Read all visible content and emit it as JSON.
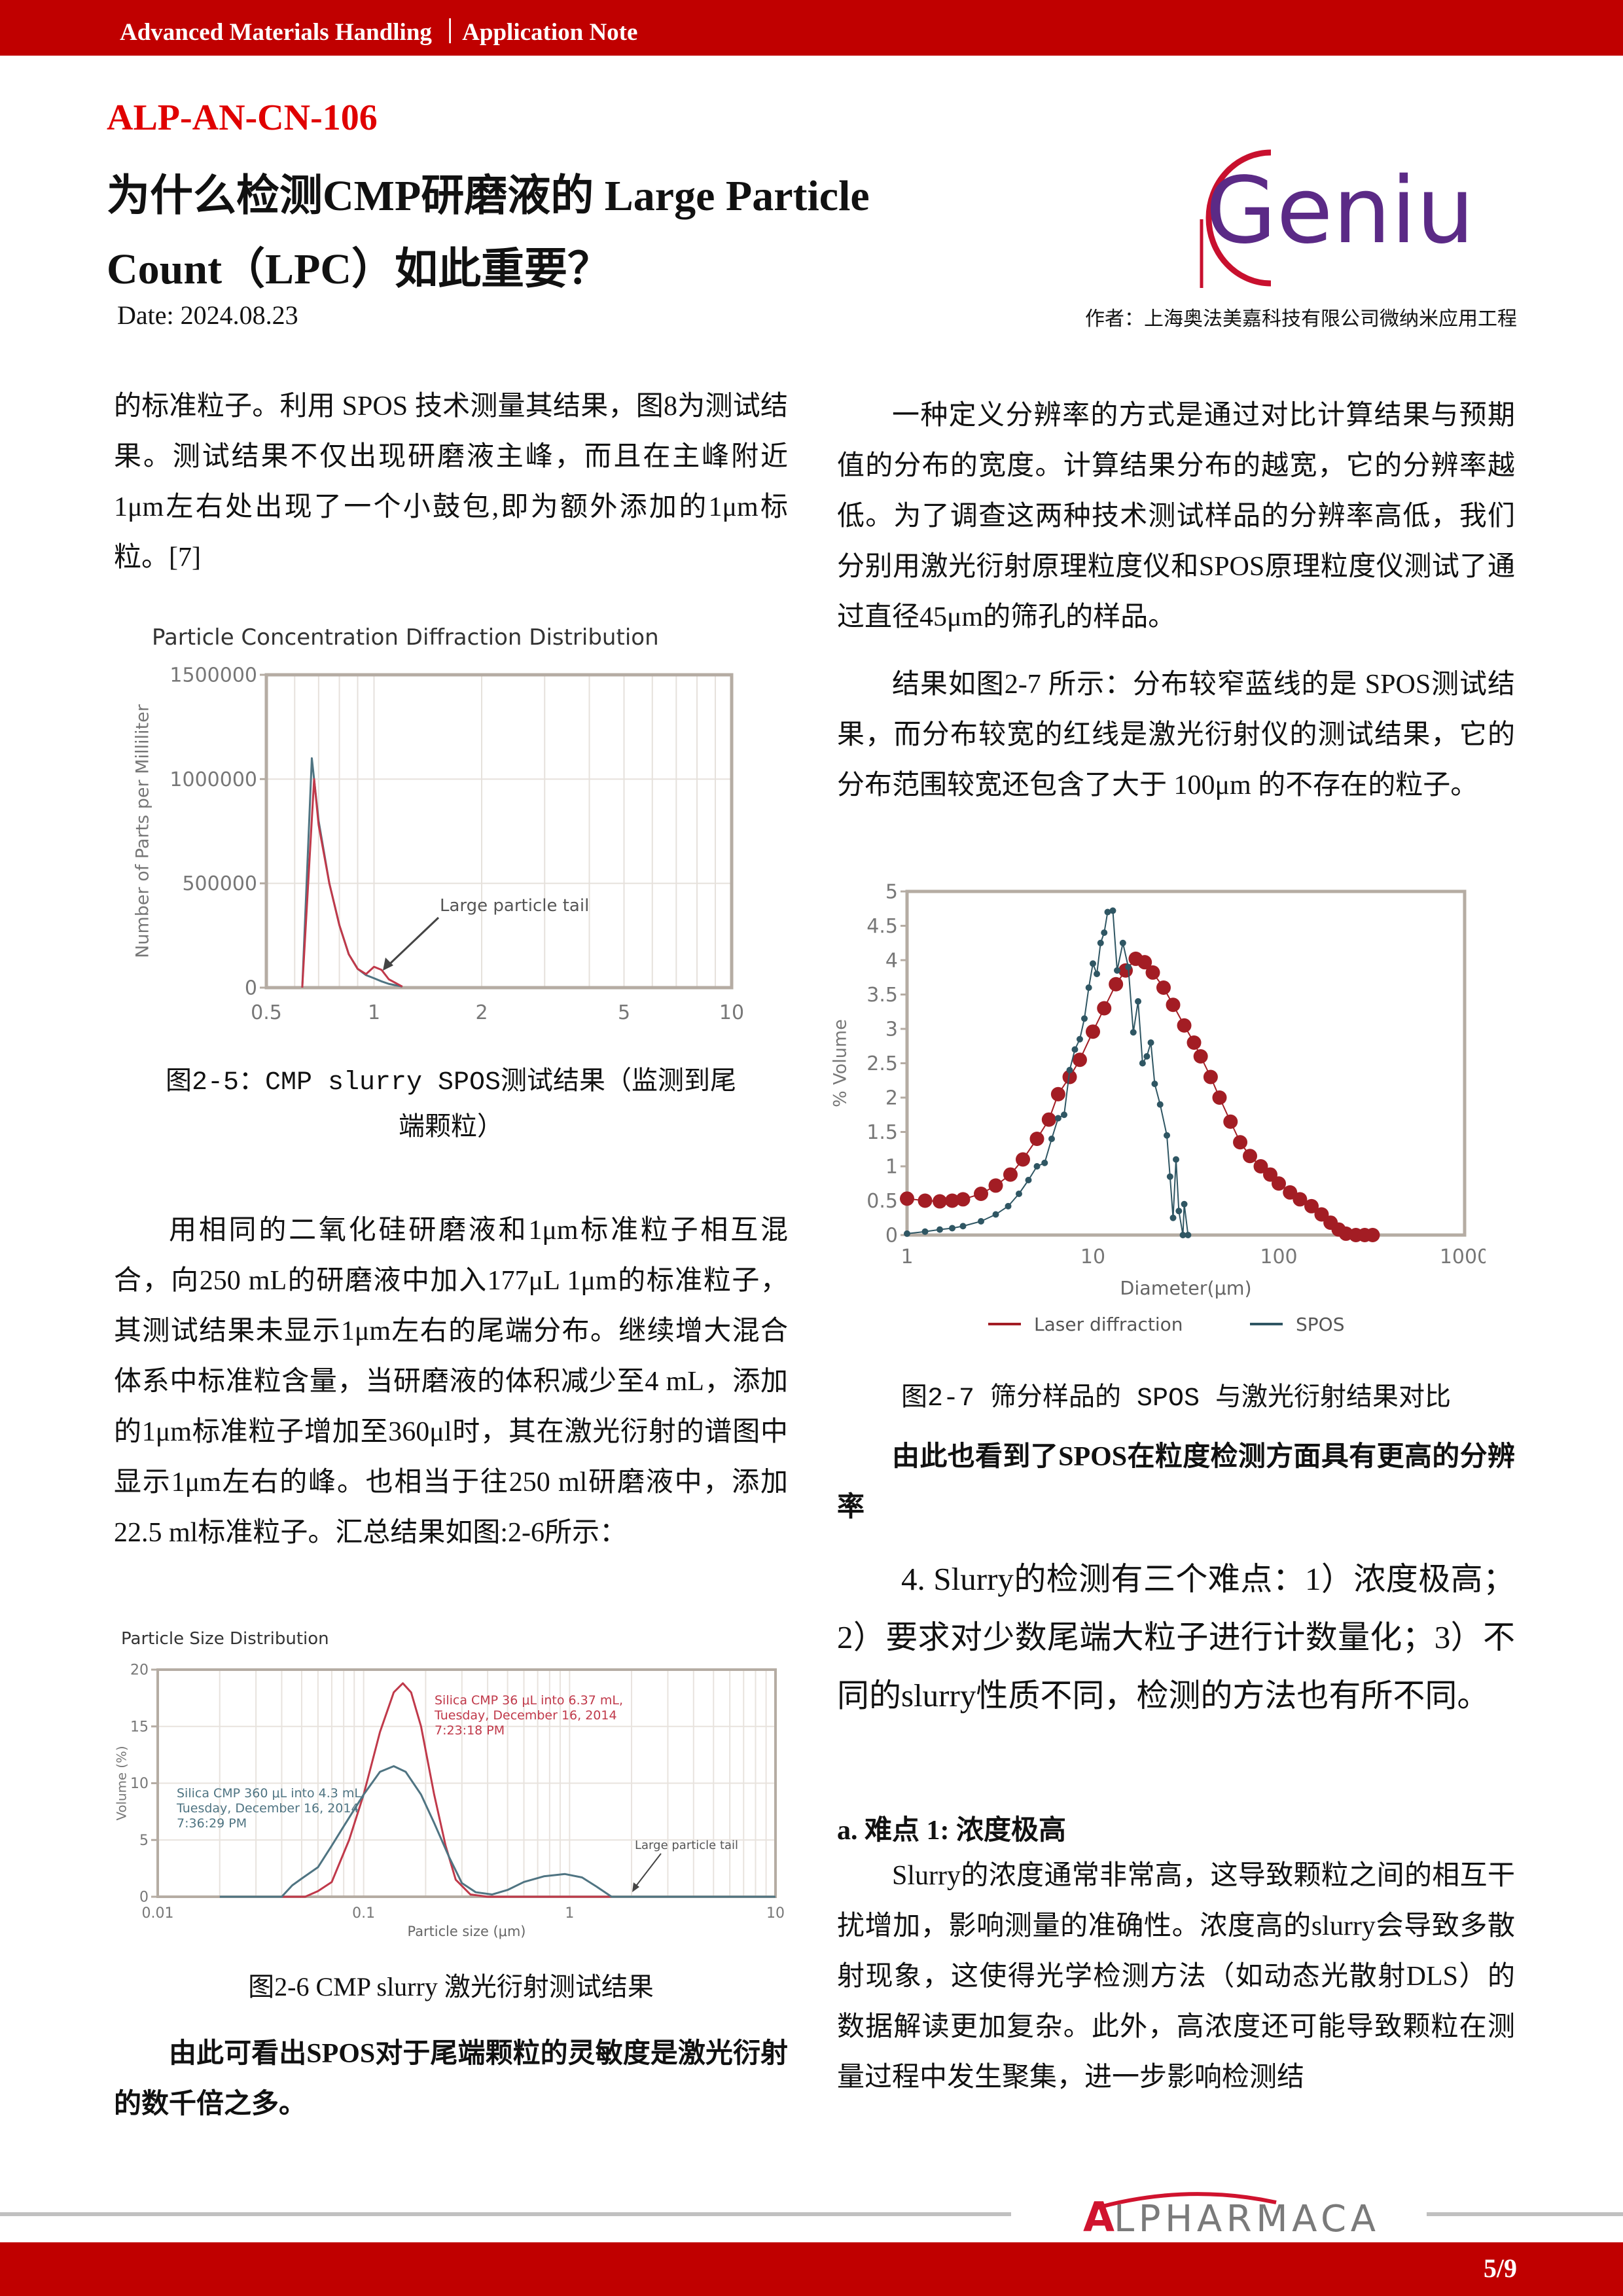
{
  "header": {
    "banner": "Advanced Materials Handling ｜Application Note",
    "doc_id": "ALP-AN-CN-106",
    "title_line1": "为什么检测CMP研磨液的  Large Particle",
    "title_line2": "Count（LPC）如此重要？",
    "date": "Date: 2024.08.23",
    "author": "作者：上海奥法美嘉科技有限公司微纳米应用工程",
    "logo_text": "Genius"
  },
  "left": {
    "p1": "的标准粒子。利用 SPOS 技术测量其结果，图8为测试结果。测试结果不仅出现研磨液主峰，而且在主峰附近1μm左右处出现了一个小鼓包,即为额外添加的1μm标粒。[7]",
    "cap1": "图2-5：CMP slurry SPOS测试结果（监测到尾端颗粒）",
    "p2": "用相同的二氧化硅研磨液和1μm标准粒子相互混合，向250 mL的研磨液中加入177μL 1μm的标准粒子，其测试结果未显示1μm左右的尾端分布。继续增大混合体系中标准粒含量，当研磨液的体积减少至4 mL，添加的1μm标准粒子增加至360μl时，其在激光衍射的谱图中显示1μm左右的峰。也相当于往250 ml研磨液中，添加22.5 ml标准粒子。汇总结果如图:2-6所示：",
    "cap2": "图2-6 CMP  slurry 激光衍射测试结果",
    "bold": "由此可看出SPOS对于尾端颗粒的灵敏度是激光衍射的数千倍之多。"
  },
  "right": {
    "p1": "一种定义分辨率的方式是通过对比计算结果与预期值的分布的宽度。计算结果分布的越宽，它的分辨率越低。为了调查这两种技术测试样品的分辨率高低，我们分别用激光衍射原理粒度仪和SPOS原理粒度仪测试了通过直径45μm的筛孔的样品。",
    "p2": "结果如图2-7 所示：分布较窄蓝线的是 SPOS测试结果，而分布较宽的红线是激光衍射仪的测试结果，它的分布范围较宽还包含了大于 100μm 的不存在的粒子。",
    "cap": "图2-7 筛分样品的 SPOS 与激光衍射结果对比",
    "bold": "由此也看到了SPOS在粒度检测方面具有更高的分辨率",
    "p3": "4. Slurry的检测有三个难点：1）浓度极高；2）要求对少数尾端大粒子进行计数量化；3）不同的slurry性质不同，检测的方法也有所不同。",
    "heading": "a.  难点  1:  浓度极高",
    "p4": "Slurry的浓度通常非常高，这导致颗粒之间的相互干扰增加，影响测量的准确性。浓度高的slurry会导致多散射现象，这使得光学检测方法（如动态光散射DLS）的数据解读更加复杂。此外，高浓度还可能导致颗粒在测量过程中发生聚集，进一步影响检测结"
  },
  "footer": {
    "logo_text": "ALPHARMACA",
    "page": "5/9"
  },
  "colors": {
    "brand_red": "#c00000",
    "red_series": "#c0394a",
    "blue_series": "#4f7482",
    "laser": "#a31d24",
    "spos": "#2f5663"
  },
  "chart_data": [
    {
      "type": "line",
      "title": "Particle Concentration Diffraction Distribution",
      "xlabel": "",
      "ylabel": "Number of Parts per Milliliter",
      "xscale": "log",
      "xlim": [
        0.5,
        10
      ],
      "ylim": [
        0,
        1500000
      ],
      "xticks": [
        "0.5",
        "1",
        "2",
        "5",
        "10"
      ],
      "yticks": [
        "0",
        "500000",
        "1000000",
        "1500000"
      ],
      "grid": true,
      "annotation": "Large particle tail",
      "series": [
        {
          "color": "#4f7482",
          "x": [
            0.63,
            0.67,
            0.7,
            0.75,
            0.8,
            0.85,
            0.9,
            0.95,
            1.0,
            1.05,
            1.1,
            1.2
          ],
          "y": [
            0,
            1100000,
            800000,
            500000,
            300000,
            160000,
            90000,
            60000,
            45000,
            30000,
            18000,
            5000
          ]
        },
        {
          "color": "#c0394a",
          "x": [
            0.63,
            0.68,
            0.7,
            0.75,
            0.8,
            0.85,
            0.9,
            0.95,
            1.0,
            1.05,
            1.1,
            1.2
          ],
          "y": [
            0,
            1000000,
            780000,
            500000,
            300000,
            160000,
            90000,
            65000,
            100000,
            85000,
            40000,
            5000
          ]
        }
      ]
    },
    {
      "type": "line",
      "title": "Particle Size Distribution",
      "xlabel": "Particle size (μm)",
      "ylabel": "Volume (%)",
      "xscale": "log",
      "xlim": [
        0.01,
        10
      ],
      "ylim": [
        0,
        20
      ],
      "xticks": [
        "0.01",
        "0.1",
        "1",
        "10"
      ],
      "yticks": [
        "0",
        "5",
        "10",
        "15",
        "20"
      ],
      "grid": true,
      "annotation": "Large particle tail",
      "series": [
        {
          "name": "Silica CMP 36 μL into 6.37 mL,|Tuesday, December 16, 2014|7:23:18 PM",
          "color": "#c0394a",
          "x": [
            0.04,
            0.052,
            0.06,
            0.07,
            0.085,
            0.1,
            0.12,
            0.14,
            0.155,
            0.17,
            0.19,
            0.22,
            0.25,
            0.28,
            0.33,
            0.4,
            1.6,
            10
          ],
          "y": [
            0,
            0,
            0.5,
            1.3,
            5,
            9,
            14.5,
            18,
            18.8,
            18,
            15,
            9,
            4.5,
            1.5,
            0.2,
            0,
            0,
            0
          ]
        },
        {
          "name": "Silica CMP 360 μL into 4.3 mL,|Tuesday, December 16, 2014|7:36:29 PM",
          "color": "#4f7482",
          "x": [
            0.02,
            0.04,
            0.045,
            0.05,
            0.06,
            0.07,
            0.08,
            0.1,
            0.12,
            0.14,
            0.16,
            0.19,
            0.22,
            0.26,
            0.3,
            0.35,
            0.42,
            0.5,
            0.6,
            0.75,
            0.95,
            1.15,
            1.35,
            1.6,
            10
          ],
          "y": [
            0,
            0,
            1,
            1.6,
            2.6,
            4.5,
            6.2,
            9,
            11,
            11.5,
            11,
            9,
            6.5,
            3.5,
            1.2,
            0.4,
            0.2,
            0.6,
            1.3,
            1.8,
            2,
            1.7,
            0.9,
            0,
            0
          ]
        }
      ]
    },
    {
      "type": "scatter-line",
      "title": "",
      "xlabel": "Diameter(μm)",
      "ylabel": "% Volume",
      "xscale": "log",
      "xlim": [
        1,
        1000
      ],
      "ylim": [
        0,
        5
      ],
      "xticks": [
        "1",
        "10",
        "100",
        "1000"
      ],
      "yticks": [
        "0",
        "0.5",
        "1",
        "1.5",
        "2",
        "2.5",
        "3",
        "3.5",
        "4",
        "4.5",
        "5"
      ],
      "grid": false,
      "legend": "bottom",
      "series": [
        {
          "name": "Laser diffraction",
          "color": "#a31d24",
          "x": [
            1,
            1.25,
            1.5,
            1.75,
            2,
            2.5,
            3,
            3.6,
            4.2,
            5,
            5.8,
            6.5,
            7.5,
            8.5,
            10,
            11.5,
            13.3,
            15,
            17,
            19,
            21,
            24,
            27,
            31,
            35,
            38,
            43,
            48,
            55,
            62,
            70,
            80,
            90,
            100,
            115,
            130,
            150,
            170,
            190,
            210,
            230,
            260,
            290,
            320
          ],
          "y": [
            0.53,
            0.5,
            0.49,
            0.5,
            0.52,
            0.6,
            0.72,
            0.88,
            1.1,
            1.4,
            1.68,
            2.05,
            2.3,
            2.55,
            2.96,
            3.3,
            3.65,
            3.85,
            4.02,
            3.97,
            3.82,
            3.6,
            3.35,
            3.05,
            2.8,
            2.6,
            2.3,
            2.0,
            1.65,
            1.35,
            1.15,
            1.0,
            0.88,
            0.75,
            0.62,
            0.52,
            0.42,
            0.3,
            0.18,
            0.08,
            0.02,
            0,
            0,
            0
          ]
        },
        {
          "name": "SPOS",
          "color": "#2f5663",
          "x": [
            1,
            1.25,
            1.5,
            1.75,
            2,
            2.5,
            3,
            3.5,
            4,
            4.5,
            5,
            5.5,
            6,
            6.5,
            7,
            7.5,
            8,
            8.5,
            9,
            9.5,
            10,
            10.5,
            11,
            11.5,
            12,
            12.8,
            13.5,
            14.5,
            15.5,
            16.5,
            17.5,
            18.5,
            19.5,
            20.5,
            21.5,
            23,
            25,
            26,
            27,
            28,
            29,
            30.5,
            31,
            32.5
          ],
          "y": [
            0.02,
            0.05,
            0.08,
            0.1,
            0.13,
            0.2,
            0.3,
            0.42,
            0.6,
            0.8,
            1.0,
            1.05,
            1.4,
            1.7,
            1.75,
            2.4,
            2.7,
            2.85,
            3.15,
            3.6,
            3.95,
            3.8,
            4.25,
            4.4,
            4.7,
            4.72,
            3.85,
            4.25,
            3.9,
            2.95,
            3.4,
            2.5,
            2.6,
            2.8,
            2.2,
            1.9,
            1.45,
            0.85,
            0.25,
            1.1,
            0.35,
            0,
            0.45,
            0
          ]
        }
      ]
    }
  ]
}
